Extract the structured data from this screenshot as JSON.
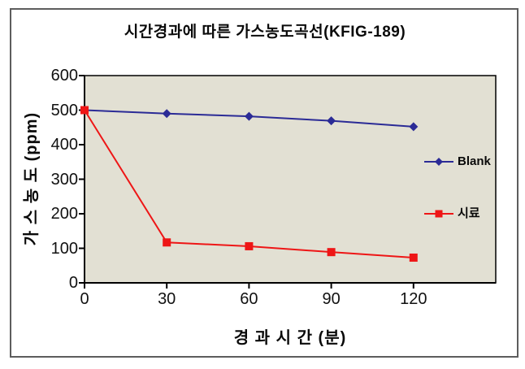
{
  "title": "시간경과에 따른 가스농도곡선(KFIG-189)",
  "chart_data": {
    "type": "line",
    "title": "시간경과에 따른 가스농도곡선(KFIG-189)",
    "xlabel": "경 과 시 간 (분)",
    "ylabel": "가 스 농 도 (ppm)",
    "x": [
      0,
      30,
      60,
      90,
      120
    ],
    "x_ticks": [
      0,
      30,
      60,
      90,
      120
    ],
    "y_ticks": [
      0,
      100,
      200,
      300,
      400,
      500,
      600
    ],
    "xlim": [
      0,
      150
    ],
    "ylim": [
      0,
      600
    ],
    "grid": false,
    "legend_position": "right-inside",
    "plot_bg": "#e2e0d3",
    "axis_color": "#000000",
    "series": [
      {
        "name": "Blank",
        "color": "#2b2b96",
        "marker": "diamond",
        "values": [
          500,
          490,
          482,
          469,
          452
        ]
      },
      {
        "name": "시료",
        "color": "#ee1616",
        "marker": "square",
        "values": [
          500,
          117,
          106,
          89,
          73
        ]
      }
    ]
  }
}
